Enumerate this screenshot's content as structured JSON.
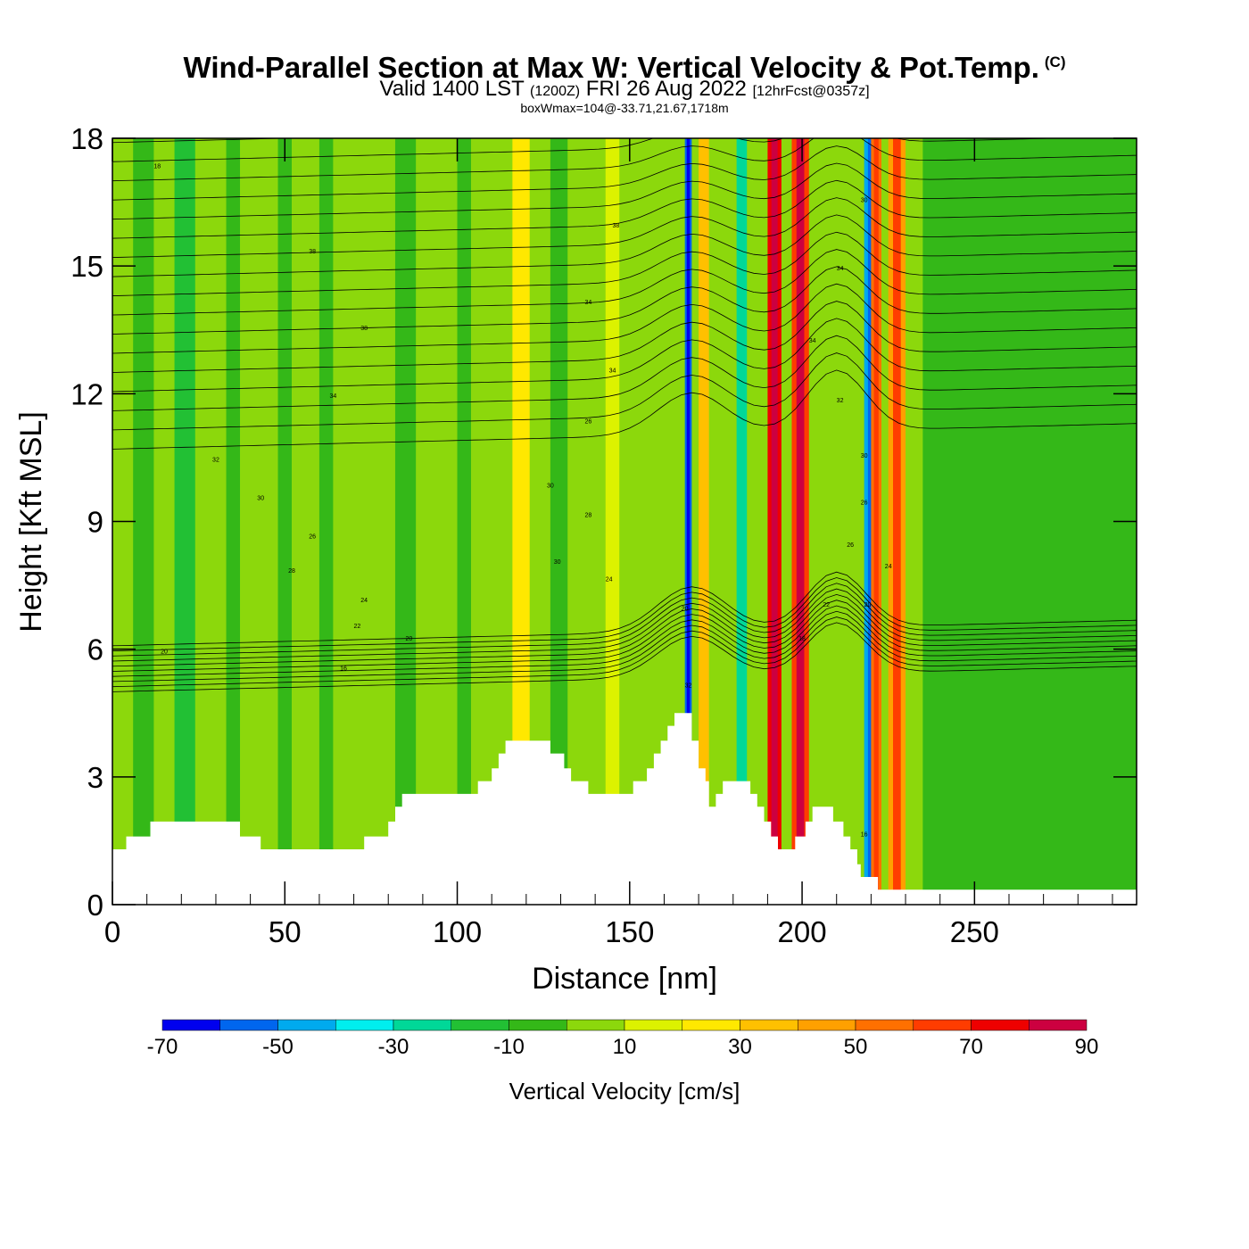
{
  "title": {
    "main": "Wind-Parallel Section at Max W: Vertical Velocity & Pot.Temp.",
    "copyright": "(C)",
    "valid_prefix": "Valid 1400 LST",
    "valid_zulu": "(1200Z)",
    "valid_date": "FRI 26 Aug 2022",
    "forecast_info": "[12hrFcst@0357z]",
    "box_info": "boxWmax=104@-33.71,21.67,1718m"
  },
  "chart_data": {
    "type": "contour-cross-section",
    "xlabel": "Distance [nm]",
    "ylabel": "Height [Kft MSL]",
    "xlim": [
      0,
      297
    ],
    "ylim": [
      0,
      18
    ],
    "xticks": [
      0,
      50,
      100,
      150,
      200,
      250
    ],
    "yticks": [
      0,
      3,
      6,
      9,
      12,
      15,
      18
    ],
    "fill_variable": "Vertical Velocity [cm/s]",
    "contour_variable": "Potential Temperature",
    "colorbar": {
      "label": "Vertical Velocity [cm/s]",
      "levels": [
        -70,
        -60,
        -50,
        -40,
        -30,
        -20,
        -10,
        0,
        10,
        20,
        30,
        40,
        50,
        60,
        70,
        80,
        90
      ],
      "tick_labels": [
        "-70",
        "-50",
        "-30",
        "-10",
        "10",
        "30",
        "50",
        "70",
        "90"
      ],
      "colors": [
        "#0000ee",
        "#0066ee",
        "#00aaee",
        "#00eeee",
        "#00d898",
        "#22c034",
        "#34b818",
        "#8cd80c",
        "#dcf200",
        "#ffe800",
        "#ffc000",
        "#ffa000",
        "#ff7000",
        "#ff3c00",
        "#ee0000",
        "#cc0040"
      ]
    },
    "terrain_kft": [
      [
        0,
        1.3
      ],
      [
        4,
        1.3
      ],
      [
        4,
        1.6
      ],
      [
        11,
        1.6
      ],
      [
        11,
        1.95
      ],
      [
        37,
        1.95
      ],
      [
        37,
        1.6
      ],
      [
        43,
        1.6
      ],
      [
        43,
        1.3
      ],
      [
        73,
        1.3
      ],
      [
        73,
        1.3
      ],
      [
        73,
        1.6
      ],
      [
        80,
        1.6
      ],
      [
        80,
        1.95
      ],
      [
        82,
        1.95
      ],
      [
        82,
        2.3
      ],
      [
        84,
        2.3
      ],
      [
        84,
        2.6
      ],
      [
        86,
        2.6
      ],
      [
        86,
        2.6
      ],
      [
        106,
        2.6
      ],
      [
        106,
        2.9
      ],
      [
        110,
        2.9
      ],
      [
        110,
        3.2
      ],
      [
        112,
        3.2
      ],
      [
        112,
        3.55
      ],
      [
        114,
        3.55
      ],
      [
        114,
        3.85
      ],
      [
        127,
        3.85
      ],
      [
        127,
        3.55
      ],
      [
        131,
        3.55
      ],
      [
        131,
        3.2
      ],
      [
        133,
        3.2
      ],
      [
        133,
        2.9
      ],
      [
        138,
        2.9
      ],
      [
        138,
        2.6
      ],
      [
        151,
        2.6
      ],
      [
        151,
        2.9
      ],
      [
        155,
        2.9
      ],
      [
        155,
        3.2
      ],
      [
        157,
        3.2
      ],
      [
        157,
        3.55
      ],
      [
        159,
        3.55
      ],
      [
        159,
        3.85
      ],
      [
        161,
        3.85
      ],
      [
        161,
        4.2
      ],
      [
        163,
        4.2
      ],
      [
        163,
        4.5
      ],
      [
        168,
        4.5
      ],
      [
        168,
        3.85
      ],
      [
        170,
        3.85
      ],
      [
        170,
        3.2
      ],
      [
        172,
        3.2
      ],
      [
        172,
        2.9
      ],
      [
        173,
        2.9
      ],
      [
        173,
        2.3
      ],
      [
        175,
        2.3
      ],
      [
        175,
        2.6
      ],
      [
        177,
        2.6
      ],
      [
        177,
        2.9
      ],
      [
        185,
        2.9
      ],
      [
        185,
        2.6
      ],
      [
        187,
        2.6
      ],
      [
        187,
        2.3
      ],
      [
        189,
        2.3
      ],
      [
        189,
        1.95
      ],
      [
        191,
        1.95
      ],
      [
        191,
        1.6
      ],
      [
        193,
        1.6
      ],
      [
        193,
        1.3
      ],
      [
        198,
        1.3
      ],
      [
        198,
        1.6
      ],
      [
        201,
        1.6
      ],
      [
        201,
        1.95
      ],
      [
        203,
        1.95
      ],
      [
        203,
        2.3
      ],
      [
        209,
        2.3
      ],
      [
        209,
        1.95
      ],
      [
        212,
        1.95
      ],
      [
        212,
        1.6
      ],
      [
        214,
        1.6
      ],
      [
        214,
        1.3
      ],
      [
        216,
        1.3
      ],
      [
        216,
        0.95
      ],
      [
        217,
        0.95
      ],
      [
        217,
        0.65
      ],
      [
        219,
        0.65
      ],
      [
        219,
        0.65
      ],
      [
        222,
        0.65
      ],
      [
        222,
        0.35
      ],
      [
        297,
        0.35
      ]
    ],
    "vertical_velocity_columns": [
      {
        "x": [
          0,
          297
        ],
        "value": 5
      },
      {
        "x": [
          6,
          12
        ],
        "value": -8
      },
      {
        "x": [
          18,
          24
        ],
        "value": -12
      },
      {
        "x": [
          33,
          37
        ],
        "value": -10
      },
      {
        "x": [
          48,
          52
        ],
        "value": -8
      },
      {
        "x": [
          60,
          64
        ],
        "value": -10
      },
      {
        "x": [
          82,
          88
        ],
        "value": -8
      },
      {
        "x": [
          100,
          104
        ],
        "value": -6
      },
      {
        "x": [
          116,
          121
        ],
        "value": 25
      },
      {
        "x": [
          127,
          132
        ],
        "value": -10
      },
      {
        "x": [
          143,
          147
        ],
        "value": 15
      },
      {
        "x": [
          166,
          168
        ],
        "value": -60
      },
      {
        "x": [
          170,
          173
        ],
        "value": 35
      },
      {
        "x": [
          181,
          184
        ],
        "value": -30
      },
      {
        "x": [
          190,
          194
        ],
        "value": 70
      },
      {
        "x": [
          197,
          202
        ],
        "value": 65
      },
      {
        "x": [
          218,
          222
        ],
        "value": -45
      },
      {
        "x": [
          220,
          223
        ],
        "value": 50
      },
      {
        "x": [
          225,
          230
        ],
        "value": 45
      },
      {
        "x": [
          235,
          297
        ],
        "value": -10
      }
    ],
    "contour_labels": [
      {
        "text": "18",
        "x": 13,
        "y": 17.3
      },
      {
        "text": "38",
        "x": 58,
        "y": 15.3
      },
      {
        "text": "38",
        "x": 73,
        "y": 13.5
      },
      {
        "text": "34",
        "x": 64,
        "y": 11.9
      },
      {
        "text": "32",
        "x": 30,
        "y": 10.4
      },
      {
        "text": "30",
        "x": 43,
        "y": 9.5
      },
      {
        "text": "26",
        "x": 58,
        "y": 8.6
      },
      {
        "text": "28",
        "x": 52,
        "y": 7.8
      },
      {
        "text": "24",
        "x": 73,
        "y": 7.1
      },
      {
        "text": "22",
        "x": 71,
        "y": 6.5
      },
      {
        "text": "20",
        "x": 86,
        "y": 6.2
      },
      {
        "text": "20",
        "x": 15,
        "y": 5.9
      },
      {
        "text": "16",
        "x": 67,
        "y": 5.5
      },
      {
        "text": "38",
        "x": 146,
        "y": 15.9
      },
      {
        "text": "34",
        "x": 138,
        "y": 14.1
      },
      {
        "text": "34",
        "x": 145,
        "y": 12.5
      },
      {
        "text": "26",
        "x": 138,
        "y": 11.3
      },
      {
        "text": "30",
        "x": 127,
        "y": 9.8
      },
      {
        "text": "28",
        "x": 138,
        "y": 9.1
      },
      {
        "text": "30",
        "x": 129,
        "y": 8.0
      },
      {
        "text": "24",
        "x": 144,
        "y": 7.6
      },
      {
        "text": "20",
        "x": 166,
        "y": 6.9
      },
      {
        "text": "32",
        "x": 167,
        "y": 5.1
      },
      {
        "text": "30",
        "x": 218,
        "y": 16.5
      },
      {
        "text": "34",
        "x": 211,
        "y": 14.9
      },
      {
        "text": "34",
        "x": 203,
        "y": 13.2
      },
      {
        "text": "32",
        "x": 211,
        "y": 11.8
      },
      {
        "text": "30",
        "x": 218,
        "y": 10.5
      },
      {
        "text": "26",
        "x": 218,
        "y": 9.4
      },
      {
        "text": "26",
        "x": 214,
        "y": 8.4
      },
      {
        "text": "24",
        "x": 225,
        "y": 7.9
      },
      {
        "text": "22",
        "x": 207,
        "y": 7.0
      },
      {
        "text": "20",
        "x": 219,
        "y": 7.0
      },
      {
        "text": "18",
        "x": 200,
        "y": 6.2
      },
      {
        "text": "16",
        "x": 218,
        "y": 1.6
      }
    ]
  }
}
